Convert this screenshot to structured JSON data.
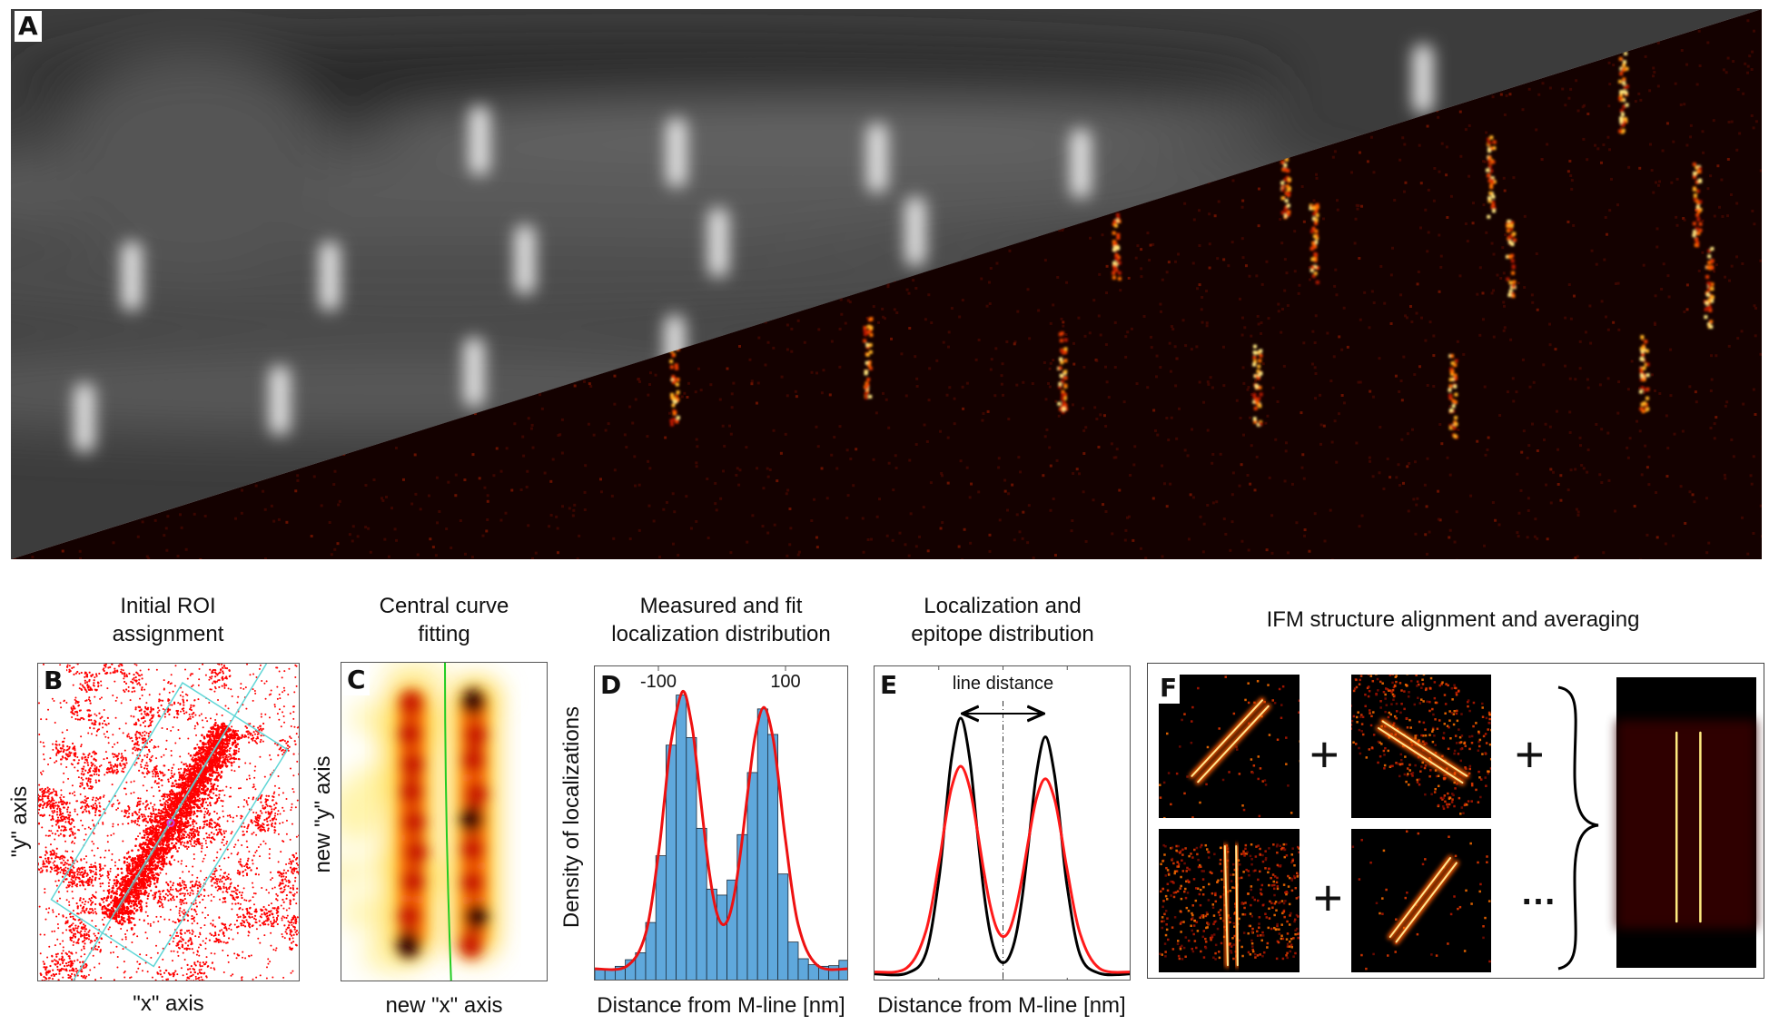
{
  "figure": {
    "panel_a": {
      "label": "A"
    },
    "panel_b": {
      "label": "B",
      "title_lines": [
        "Initial ROI",
        "assignment"
      ],
      "x_axis_label": "\"x\" axis",
      "y_axis_label": "\"y\" axis"
    },
    "panel_c": {
      "label": "C",
      "title_lines": [
        "Central curve",
        "fitting"
      ],
      "x_axis_label": "new \"x\" axis",
      "y_axis_label": "new \"y\" axis"
    },
    "panel_d": {
      "label": "D",
      "title_lines": [
        "Measured and fit",
        "localization distribution"
      ]
    },
    "panel_e": {
      "label": "E",
      "title_lines": [
        "Localization and",
        "epitope distribution"
      ]
    },
    "panel_f": {
      "label": "F",
      "title": "IFM structure alignment and averaging",
      "operators": [
        "+",
        "+",
        "+",
        "…"
      ]
    }
  },
  "colors": {
    "histogram_bar": "#5fa8dc",
    "fit_line": "#ee1111",
    "epitope_line": "#000000",
    "roi_box": "#5fd6d6",
    "localizations": "#ff0000",
    "central_curve": "#22cc22"
  },
  "chart_data": [
    {
      "panel": "D",
      "type": "bar",
      "xlabel": "Distance from M-line [nm]",
      "ylabel": "Density of localizations",
      "xlim": [
        -200,
        200
      ],
      "ylim": [
        0,
        1
      ],
      "x_ticks": [
        -100,
        100
      ],
      "x_tick_labels": [
        "-100",
        "100"
      ],
      "bin_centers": [
        -192,
        -176,
        -160,
        -144,
        -128,
        -112,
        -96,
        -80,
        -64,
        -48,
        -32,
        -16,
        0,
        16,
        32,
        48,
        64,
        80,
        96,
        112,
        128,
        144,
        160,
        176,
        192
      ],
      "values": [
        0.04,
        0.04,
        0.048,
        0.069,
        0.091,
        0.187,
        0.399,
        0.75,
        0.909,
        0.774,
        0.486,
        0.293,
        0.274,
        0.322,
        0.466,
        0.663,
        0.865,
        0.784,
        0.341,
        0.125,
        0.072,
        0.053,
        0.048,
        0.05,
        0.067
      ],
      "series": [
        {
          "type": "line",
          "color": "#ee1111",
          "x": [
            -200,
            -150,
            -120,
            -100,
            -90,
            -80,
            -62,
            -48,
            -40,
            -30,
            -20,
            -10,
            0,
            10,
            20,
            30,
            40,
            52,
            66,
            80,
            90,
            100,
            120,
            150,
            200
          ],
          "y": [
            0.04,
            0.048,
            0.152,
            0.404,
            0.585,
            0.762,
            0.92,
            0.82,
            0.696,
            0.514,
            0.348,
            0.232,
            0.182,
            0.199,
            0.282,
            0.421,
            0.59,
            0.776,
            0.87,
            0.776,
            0.624,
            0.449,
            0.18,
            0.051,
            0.04
          ]
        }
      ]
    },
    {
      "panel": "E",
      "type": "line",
      "xlabel": "Distance from M-line [nm]",
      "xlim": [
        -200,
        200
      ],
      "ylim": [
        0,
        1
      ],
      "x_ticks": [
        -100,
        0,
        100
      ],
      "annotation": "line distance",
      "series": [
        {
          "color": "#000000",
          "x": [
            -200,
            -150,
            -120,
            -100,
            -90,
            -80,
            -66,
            -52,
            -40,
            -30,
            -20,
            -10,
            0,
            10,
            20,
            30,
            40,
            52,
            66,
            80,
            90,
            100,
            120,
            150,
            200
          ],
          "y": [
            0.024,
            0.026,
            0.09,
            0.325,
            0.522,
            0.716,
            0.844,
            0.716,
            0.48,
            0.29,
            0.155,
            0.083,
            0.06,
            0.08,
            0.146,
            0.272,
            0.447,
            0.665,
            0.784,
            0.665,
            0.485,
            0.303,
            0.085,
            0.026,
            0.024
          ]
        },
        {
          "color": "#ff1a1a",
          "x": [
            -200,
            -150,
            -120,
            -100,
            -90,
            -80,
            -66,
            -52,
            -40,
            -30,
            -20,
            -10,
            0,
            10,
            20,
            30,
            40,
            52,
            66,
            80,
            90,
            100,
            120,
            150,
            200
          ],
          "y": [
            0.03,
            0.043,
            0.161,
            0.377,
            0.509,
            0.622,
            0.69,
            0.622,
            0.484,
            0.355,
            0.244,
            0.171,
            0.144,
            0.165,
            0.233,
            0.336,
            0.457,
            0.586,
            0.65,
            0.586,
            0.48,
            0.356,
            0.153,
            0.042,
            0.03
          ]
        }
      ]
    }
  ]
}
